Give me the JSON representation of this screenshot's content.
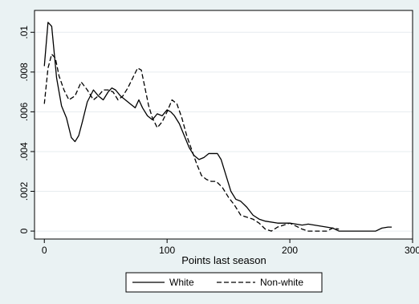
{
  "chart_data": {
    "type": "line",
    "title": "",
    "xlabel": "Points last season",
    "ylabel": "",
    "xlim": [
      -8,
      300
    ],
    "ylim": [
      -0.0004,
      0.0111
    ],
    "xticks": [
      0,
      100,
      200,
      300
    ],
    "xtick_labels": [
      "0",
      "100",
      "200",
      "300"
    ],
    "yticks": [
      0,
      0.002,
      0.004,
      0.006,
      0.008,
      0.01
    ],
    "ytick_labels": [
      "0",
      ".002",
      ".004",
      ".006",
      ".008",
      ".01"
    ],
    "grid": "horizontal",
    "legend_position": "bottom",
    "series": [
      {
        "name": "White",
        "line_style": "solid",
        "color": "#000000",
        "x": [
          0,
          3,
          6,
          10,
          14,
          18,
          22,
          25,
          28,
          31,
          35,
          40,
          44,
          48,
          52,
          55,
          58,
          62,
          66,
          70,
          74,
          77,
          80,
          84,
          88,
          92,
          96,
          100,
          103,
          106,
          110,
          114,
          118,
          122,
          126,
          130,
          134,
          138,
          141,
          144,
          148,
          152,
          156,
          160,
          165,
          170,
          175,
          180,
          190,
          200,
          210,
          215,
          220,
          225,
          230,
          235,
          240,
          250,
          260,
          270,
          275,
          280,
          283
        ],
        "y": [
          0.0083,
          0.0105,
          0.0103,
          0.0077,
          0.0063,
          0.0057,
          0.0047,
          0.0045,
          0.0048,
          0.0055,
          0.0065,
          0.0071,
          0.0068,
          0.0066,
          0.007,
          0.0072,
          0.0071,
          0.0068,
          0.0066,
          0.0064,
          0.0062,
          0.0066,
          0.0062,
          0.0058,
          0.0056,
          0.0059,
          0.0058,
          0.0061,
          0.006,
          0.0058,
          0.0054,
          0.0048,
          0.0042,
          0.0038,
          0.0036,
          0.0037,
          0.0039,
          0.0039,
          0.0039,
          0.0036,
          0.0028,
          0.002,
          0.0016,
          0.0015,
          0.0012,
          0.0008,
          0.0006,
          0.0005,
          0.0004,
          0.0004,
          0.0003,
          0.00035,
          0.0003,
          0.00025,
          0.0002,
          0.00015,
          0.0,
          0.0,
          0.0,
          0.0,
          0.00015,
          0.0002,
          0.0002
        ]
      },
      {
        "name": "Non-white",
        "line_style": "dashed",
        "color": "#000000",
        "x": [
          0,
          3,
          6,
          9,
          12,
          16,
          20,
          25,
          30,
          35,
          40,
          44,
          48,
          52,
          56,
          60,
          64,
          68,
          72,
          76,
          79,
          82,
          85,
          88,
          92,
          96,
          100,
          104,
          108,
          112,
          116,
          120,
          124,
          128,
          132,
          136,
          140,
          145,
          150,
          155,
          160,
          165,
          170,
          175,
          180,
          185,
          190,
          200,
          210,
          215,
          220,
          225,
          230,
          235,
          240
        ],
        "y": [
          0.0064,
          0.0082,
          0.0089,
          0.0087,
          0.0078,
          0.0071,
          0.0066,
          0.0068,
          0.0075,
          0.0071,
          0.0066,
          0.0068,
          0.0071,
          0.0071,
          0.007,
          0.0066,
          0.0068,
          0.0072,
          0.0077,
          0.0082,
          0.0081,
          0.0072,
          0.0063,
          0.0057,
          0.0052,
          0.0055,
          0.006,
          0.0066,
          0.0064,
          0.0057,
          0.0048,
          0.0041,
          0.0034,
          0.0028,
          0.0026,
          0.0025,
          0.0025,
          0.0022,
          0.0017,
          0.0013,
          0.0008,
          0.0007,
          0.0006,
          0.0004,
          0.0001,
          0.0,
          0.0002,
          0.0004,
          0.0001,
          0.0,
          0.0,
          0.0,
          0.0,
          0.00015,
          0.0001
        ]
      }
    ]
  }
}
